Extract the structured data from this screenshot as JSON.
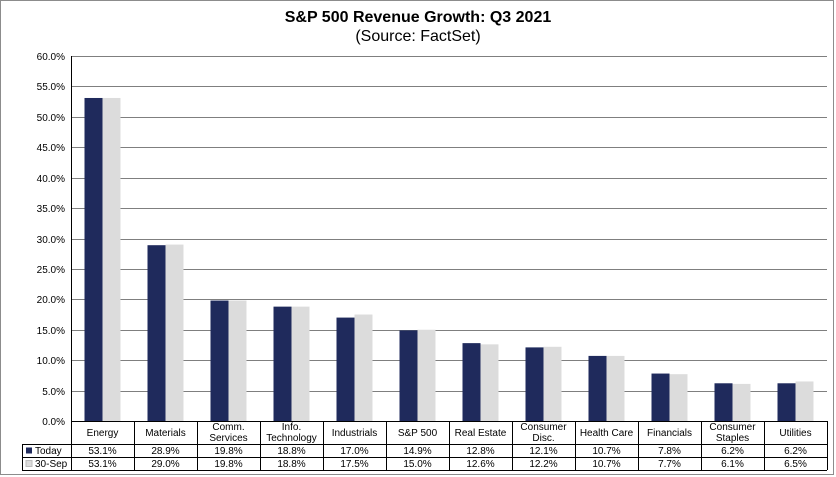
{
  "chart_data": {
    "type": "bar",
    "title": "S&P 500 Revenue Growth: Q3 2021",
    "subtitle": "(Source: FactSet)",
    "categories": [
      [
        "Energy"
      ],
      [
        "Materials"
      ],
      [
        "Comm.",
        "Services"
      ],
      [
        "Info.",
        "Technology"
      ],
      [
        "Industrials"
      ],
      [
        "S&P 500"
      ],
      [
        "Real Estate"
      ],
      [
        "Consumer",
        "Disc."
      ],
      [
        "Health Care"
      ],
      [
        "Financials"
      ],
      [
        "Consumer",
        "Staples"
      ],
      [
        "Utilities"
      ]
    ],
    "series": [
      {
        "name": "Today",
        "color": "#1f2a5c",
        "values": [
          53.1,
          28.9,
          19.8,
          18.8,
          17.0,
          14.9,
          12.8,
          12.1,
          10.7,
          7.8,
          6.2,
          6.2
        ],
        "labels": [
          "53.1%",
          "28.9%",
          "19.8%",
          "18.8%",
          "17.0%",
          "14.9%",
          "12.8%",
          "12.1%",
          "10.7%",
          "7.8%",
          "6.2%",
          "6.2%"
        ]
      },
      {
        "name": "30-Sep",
        "color": "#dcdcdc",
        "values": [
          53.1,
          29.0,
          19.8,
          18.8,
          17.5,
          15.0,
          12.6,
          12.2,
          10.7,
          7.7,
          6.1,
          6.5
        ],
        "labels": [
          "53.1%",
          "29.0%",
          "19.8%",
          "18.8%",
          "17.5%",
          "15.0%",
          "12.6%",
          "12.2%",
          "10.7%",
          "7.7%",
          "6.1%",
          "6.5%"
        ]
      }
    ],
    "ylim": [
      0,
      60
    ],
    "yticks": [
      "0.0%",
      "5.0%",
      "10.0%",
      "15.0%",
      "20.0%",
      "25.0%",
      "30.0%",
      "35.0%",
      "40.0%",
      "45.0%",
      "50.0%",
      "55.0%",
      "60.0%"
    ],
    "grid": true,
    "legend": "data-table-below"
  }
}
